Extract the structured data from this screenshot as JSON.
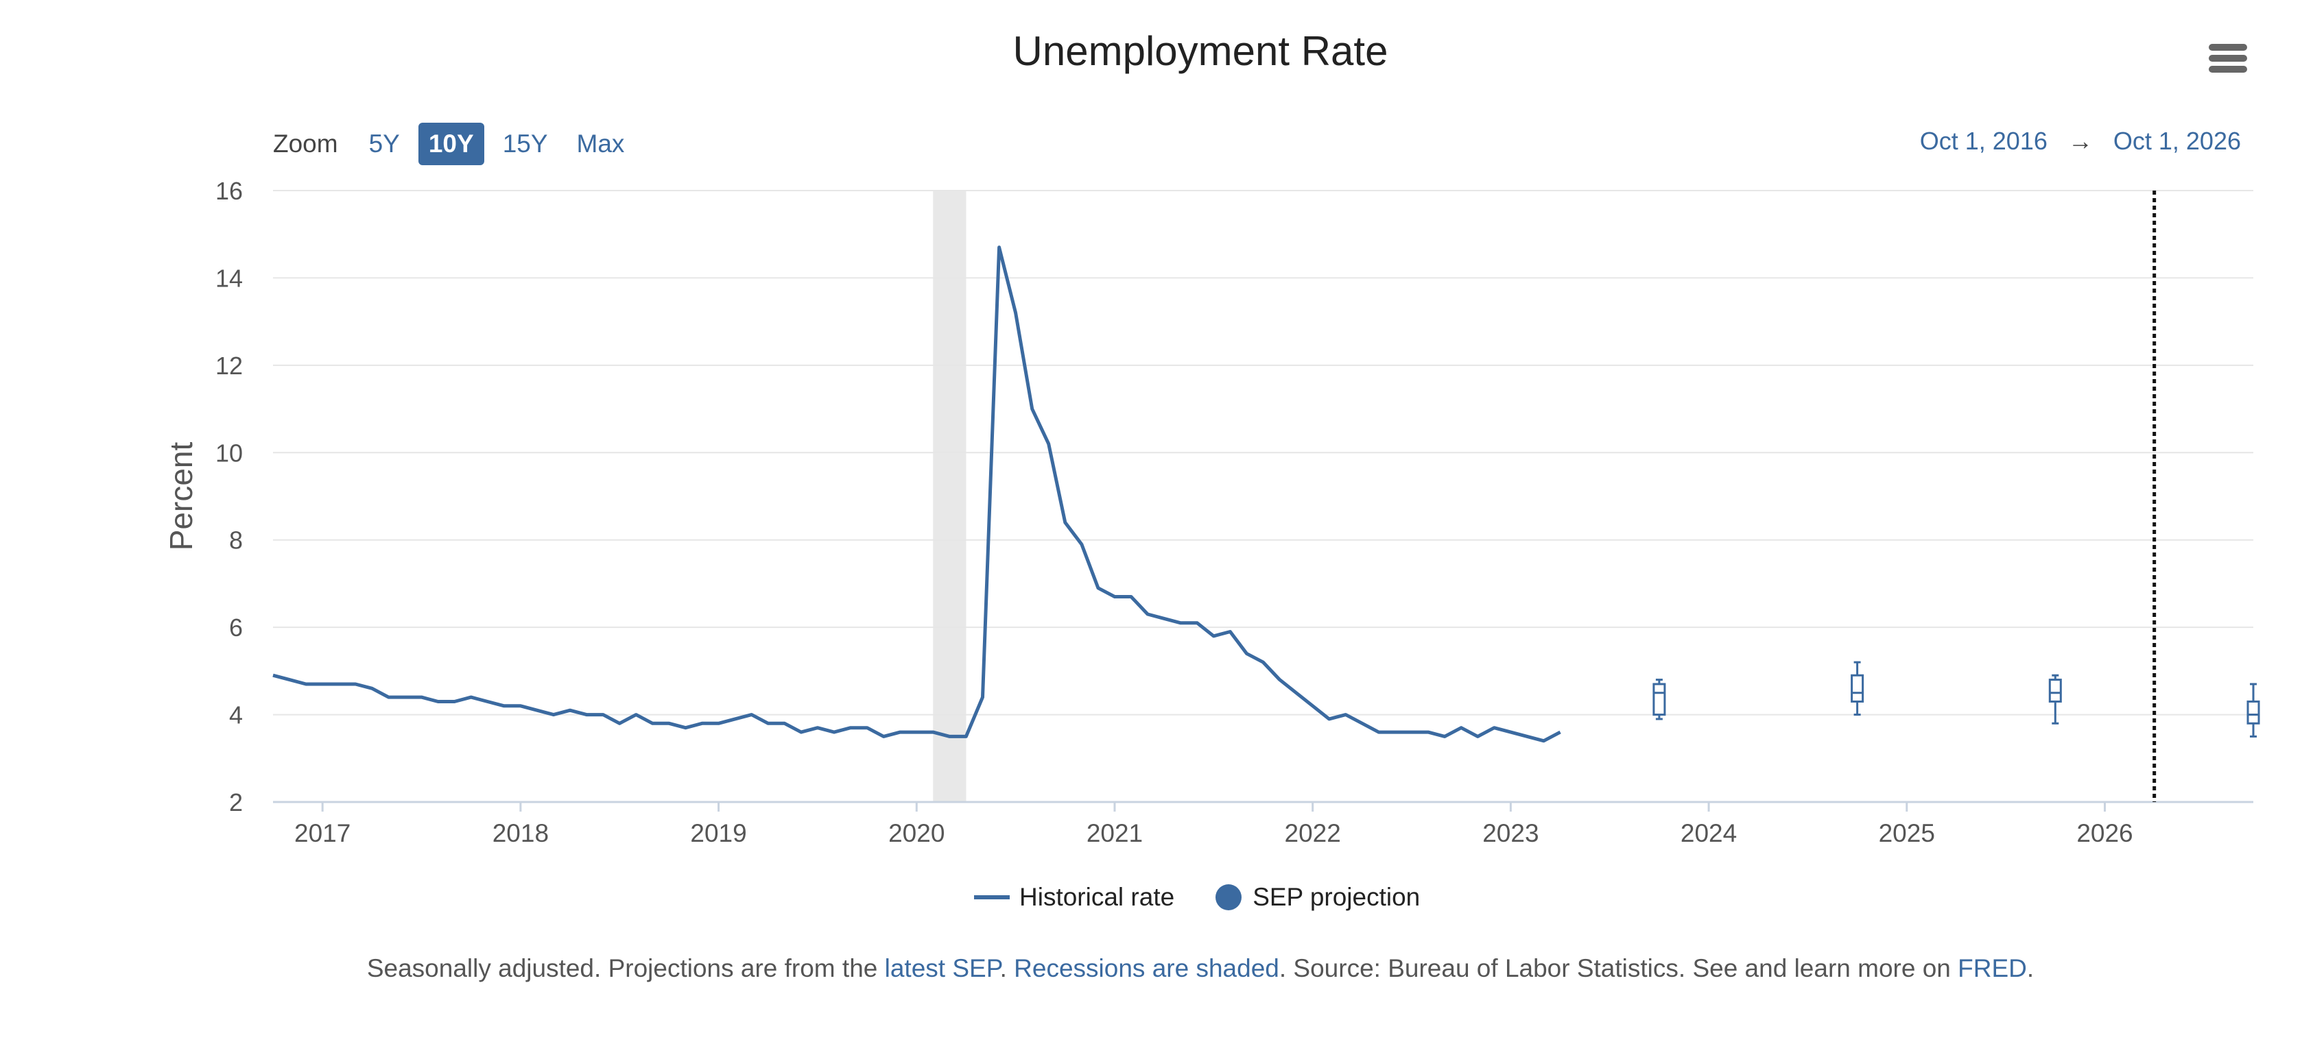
{
  "header": {
    "title": "Unemployment Rate"
  },
  "toolbar": {
    "zoom_label": "Zoom",
    "zoom_options": [
      "5Y",
      "10Y",
      "15Y",
      "Max"
    ],
    "active_zoom": "10Y",
    "range_start": "Oct 1, 2016",
    "range_arrow": "→",
    "range_end": "Oct 1, 2026"
  },
  "legend": {
    "historical": "Historical rate",
    "projection": "SEP projection"
  },
  "footnote": {
    "part1": "Seasonally adjusted. Projections are from the ",
    "link1": "latest SEP",
    "part2": ". ",
    "link2": "Recessions are shaded",
    "part3": ". Source: Bureau of Labor Statistics. See and learn more on ",
    "link3": "FRED",
    "part4": "."
  },
  "colors": {
    "series": "#3b6aa0",
    "recession": "#e8e8e8",
    "grid": "#e6e6e6",
    "axis": "#c9d3e0"
  },
  "chart_data": {
    "type": "line",
    "title": "Unemployment Rate",
    "ylabel": "Percent",
    "xlabel": "",
    "ylim": [
      2,
      16
    ],
    "yticks": [
      2,
      4,
      6,
      8,
      10,
      12,
      14,
      16
    ],
    "xlim": [
      2016.75,
      2026.75
    ],
    "xticks": [
      2017,
      2018,
      2019,
      2020,
      2021,
      2022,
      2023,
      2024,
      2025,
      2026
    ],
    "grid": true,
    "legend_position": "bottom-center",
    "recession": {
      "start": 2020.083,
      "end": 2020.25
    },
    "vertical_marker": 2026.25,
    "series": [
      {
        "name": "Historical rate",
        "start": 2016.75,
        "step_months": 1,
        "values": [
          4.9,
          4.8,
          4.7,
          4.7,
          4.7,
          4.7,
          4.6,
          4.4,
          4.4,
          4.4,
          4.3,
          4.3,
          4.4,
          4.3,
          4.2,
          4.2,
          4.1,
          4.0,
          4.1,
          4.0,
          4.0,
          3.8,
          4.0,
          3.8,
          3.8,
          3.7,
          3.8,
          3.8,
          3.9,
          4.0,
          3.8,
          3.8,
          3.6,
          3.7,
          3.6,
          3.7,
          3.7,
          3.5,
          3.6,
          3.6,
          3.6,
          3.5,
          3.5,
          4.4,
          14.7,
          13.2,
          11.0,
          10.2,
          8.4,
          7.9,
          6.9,
          6.7,
          6.7,
          6.3,
          6.2,
          6.1,
          6.1,
          5.8,
          5.9,
          5.4,
          5.2,
          4.8,
          4.5,
          4.2,
          3.9,
          4.0,
          3.8,
          3.6,
          3.6,
          3.6,
          3.6,
          3.5,
          3.7,
          3.5,
          3.7,
          3.6,
          3.5,
          3.4,
          3.6
        ]
      },
      {
        "name": "SEP projection",
        "type": "boxplot",
        "points": [
          {
            "x": 2023.75,
            "min": 3.9,
            "q1": 4.0,
            "median": 4.5,
            "q3": 4.7,
            "max": 4.8
          },
          {
            "x": 2024.75,
            "min": 4.0,
            "q1": 4.3,
            "median": 4.5,
            "q3": 4.9,
            "max": 5.2
          },
          {
            "x": 2025.75,
            "min": 3.8,
            "q1": 4.3,
            "median": 4.5,
            "q3": 4.8,
            "max": 4.9
          },
          {
            "x": 2026.75,
            "min": 3.5,
            "q1": 3.8,
            "median": 4.0,
            "q3": 4.3,
            "max": 4.7
          }
        ]
      }
    ]
  }
}
